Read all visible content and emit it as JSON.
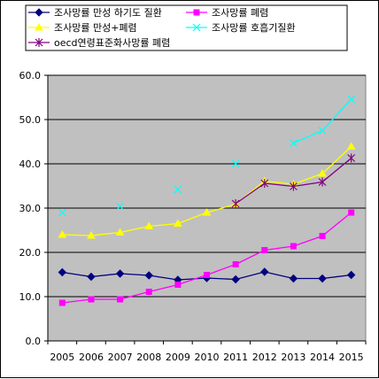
{
  "chart_data": {
    "type": "line",
    "x": [
      "2005",
      "2006",
      "2007",
      "2008",
      "2009",
      "2010",
      "2011",
      "2012",
      "2013",
      "2014",
      "2015"
    ],
    "ylim": [
      0,
      60
    ],
    "yticks": [
      "0.0",
      "10.0",
      "20.0",
      "30.0",
      "40.0",
      "50.0",
      "60.0"
    ],
    "grid": "horizontal",
    "plot_background": "#c0c0c0",
    "legend_position": "top",
    "series": [
      {
        "name": "조사망률 만성 하기도 질환",
        "color": "#000080",
        "marker": "diamond",
        "values": [
          15.5,
          14.5,
          15.2,
          14.8,
          13.8,
          14.2,
          13.9,
          15.6,
          14.1,
          14.1,
          14.9
        ]
      },
      {
        "name": "조사망률 폐렴",
        "color": "#ff00ff",
        "marker": "square",
        "values": [
          8.6,
          9.4,
          9.4,
          11.1,
          12.7,
          14.9,
          17.3,
          20.5,
          21.4,
          23.7,
          29.0
        ]
      },
      {
        "name": "조사망률 만성+폐렴",
        "color": "#ffff00",
        "marker": "triangle",
        "values": [
          24.0,
          23.8,
          24.5,
          25.9,
          26.5,
          29.0,
          30.9,
          36.1,
          35.4,
          37.8,
          43.9
        ]
      },
      {
        "name": "조사망률 호흡기질환",
        "color": "#00ffff",
        "marker": "x",
        "values": [
          29.0,
          null,
          30.4,
          null,
          34.2,
          null,
          40.0,
          null,
          44.7,
          47.5,
          54.6
        ]
      },
      {
        "name": "oecd연령표준화사망률 폐렴",
        "color": "#800080",
        "marker": "star",
        "values": [
          null,
          null,
          null,
          null,
          null,
          null,
          31.0,
          35.6,
          34.9,
          35.9,
          41.3
        ]
      }
    ]
  }
}
